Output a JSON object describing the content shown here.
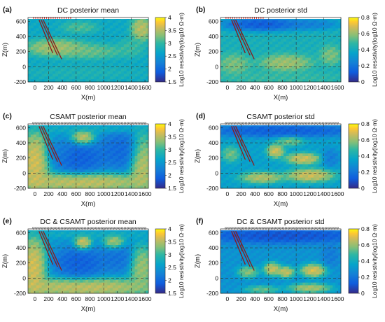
{
  "chart_data": [
    {
      "type": "heatmap",
      "panel": "(a)",
      "title": "DC posterior mean",
      "xlabel": "X(m)",
      "ylabel": "Z(m)",
      "xlim": [
        -100,
        1650
      ],
      "ylim": [
        -200,
        650
      ],
      "xticks": [
        "0",
        "200",
        "400",
        "600",
        "800",
        "1000",
        "1200",
        "1400",
        "1600"
      ],
      "yticks": [
        "600",
        "400",
        "200",
        "0",
        "-200"
      ],
      "colorbar": {
        "label": "Log10 resistivity(log10 Ω·m)",
        "range": [
          1.5,
          4
        ],
        "ticks": [
          "4",
          "3.5",
          "3",
          "2.5",
          "2",
          "1.5"
        ],
        "colormap": "parula"
      },
      "blobs": [
        {
          "x": 300,
          "z": 250,
          "rx": 350,
          "rz": 90,
          "v": 3.6
        },
        {
          "x": 1550,
          "z": 500,
          "rx": 120,
          "rz": 130,
          "v": 3.7
        },
        {
          "x": 650,
          "z": 520,
          "rx": 200,
          "rz": 60,
          "v": 3.2
        },
        {
          "x": 800,
          "z": 200,
          "rx": 400,
          "rz": 80,
          "v": 3.3
        },
        {
          "x": 1400,
          "z": 250,
          "rx": 150,
          "rz": 100,
          "v": 3.1
        },
        {
          "x": 700,
          "z": -80,
          "rx": 700,
          "rz": 80,
          "v": 2.9
        }
      ],
      "base": 2.7
    },
    {
      "type": "heatmap",
      "panel": "(b)",
      "title": "DC posterior std",
      "xlabel": "X(m)",
      "ylabel": "Z(m)",
      "xlim": [
        -100,
        1650
      ],
      "ylim": [
        -200,
        650
      ],
      "xticks": [
        "0",
        "200",
        "400",
        "600",
        "800",
        "1000",
        "1200",
        "1400",
        "1600"
      ],
      "yticks": [
        "600",
        "400",
        "200",
        "0",
        "-200"
      ],
      "colorbar": {
        "label": "Log10 resistivity(log10 Ω·m)",
        "range": [
          0,
          0.8
        ],
        "ticks": [
          "0.8",
          "0.6",
          "0.4",
          "0.2",
          "0"
        ],
        "colormap": "parula"
      },
      "blobs": [
        {
          "x": 500,
          "z": 560,
          "rx": 450,
          "rz": 70,
          "v": 0.05
        },
        {
          "x": 1200,
          "z": 560,
          "rx": 350,
          "rz": 60,
          "v": 0.2
        },
        {
          "x": 850,
          "z": 50,
          "rx": 300,
          "rz": 90,
          "v": 0.65
        },
        {
          "x": 100,
          "z": 30,
          "rx": 180,
          "rz": 110,
          "v": 0.6
        },
        {
          "x": 1500,
          "z": 150,
          "rx": 120,
          "rz": 100,
          "v": 0.6
        },
        {
          "x": 700,
          "z": -150,
          "rx": 800,
          "rz": 70,
          "v": 0.5
        }
      ],
      "base": 0.42
    },
    {
      "type": "heatmap",
      "panel": "(c)",
      "title": "CSAMT posterior mean",
      "xlabel": "X(m)",
      "ylabel": "Z(m)",
      "xlim": [
        -100,
        1650
      ],
      "ylim": [
        -200,
        650
      ],
      "xticks": [
        "0",
        "200",
        "400",
        "600",
        "800",
        "1000",
        "1200",
        "1400",
        "1600"
      ],
      "yticks": [
        "600",
        "400",
        "200",
        "0",
        "-200"
      ],
      "colorbar": {
        "label": "Log10 resistivity(log10 Ω·m)",
        "range": [
          1.5,
          4
        ],
        "ticks": [
          "4",
          "3.5",
          "3",
          "2.5",
          "2",
          "1.5"
        ],
        "colormap": "parula"
      },
      "blobs": [
        {
          "x": 0,
          "z": 150,
          "rx": 170,
          "rz": 330,
          "v": 3.9
        },
        {
          "x": 700,
          "z": -120,
          "rx": 900,
          "rz": 100,
          "v": 3.8
        },
        {
          "x": 1550,
          "z": 150,
          "rx": 140,
          "rz": 300,
          "v": 3.8
        },
        {
          "x": 700,
          "z": 470,
          "rx": 130,
          "rz": 80,
          "v": 3.8
        },
        {
          "x": 800,
          "z": 580,
          "rx": 900,
          "rz": 40,
          "v": 2.8
        },
        {
          "x": 650,
          "z": 200,
          "rx": 300,
          "rz": 170,
          "v": 1.8
        },
        {
          "x": 1250,
          "z": 300,
          "rx": 250,
          "rz": 200,
          "v": 1.9
        },
        {
          "x": 350,
          "z": 280,
          "rx": 150,
          "rz": 120,
          "v": 2.2
        }
      ],
      "base": 2.5
    },
    {
      "type": "heatmap",
      "panel": "(d)",
      "title": "CSAMT posterior std",
      "xlabel": "X(m)",
      "ylabel": "Z(m)",
      "xlim": [
        -100,
        1650
      ],
      "ylim": [
        -200,
        650
      ],
      "xticks": [
        "0",
        "200",
        "400",
        "600",
        "800",
        "1000",
        "1200",
        "1400",
        "1600"
      ],
      "yticks": [
        "600",
        "400",
        "200",
        "0",
        "-200"
      ],
      "colorbar": {
        "label": "Log10 resistivity(log10 Ω·m)",
        "range": [
          0,
          0.8
        ],
        "ticks": [
          "0.8",
          "0.6",
          "0.4",
          "0.2",
          "0"
        ],
        "colormap": "parula"
      },
      "blobs": [
        {
          "x": 800,
          "z": 560,
          "rx": 950,
          "rz": 70,
          "v": 0.08
        },
        {
          "x": 700,
          "z": 290,
          "rx": 100,
          "rz": 70,
          "v": 0.75
        },
        {
          "x": 1100,
          "z": 190,
          "rx": 200,
          "rz": 60,
          "v": 0.75
        },
        {
          "x": 1200,
          "z": -30,
          "rx": 280,
          "rz": 70,
          "v": 0.75
        },
        {
          "x": 500,
          "z": -60,
          "rx": 250,
          "rz": 60,
          "v": 0.7
        },
        {
          "x": 50,
          "z": 250,
          "rx": 100,
          "rz": 80,
          "v": 0.6
        },
        {
          "x": 900,
          "z": 420,
          "rx": 160,
          "rz": 50,
          "v": 0.6
        },
        {
          "x": 1500,
          "z": 200,
          "rx": 100,
          "rz": 100,
          "v": 0.2
        }
      ],
      "base": 0.35
    },
    {
      "type": "heatmap",
      "panel": "(e)",
      "title": "DC & CSAMT posterior mean",
      "xlabel": "X(m)",
      "ylabel": "Z(m)",
      "xlim": [
        -100,
        1650
      ],
      "ylim": [
        -200,
        650
      ],
      "xticks": [
        "0",
        "200",
        "400",
        "600",
        "800",
        "1000",
        "1200",
        "1400",
        "1600"
      ],
      "yticks": [
        "600",
        "400",
        "200",
        "0",
        "-200"
      ],
      "colorbar": {
        "label": "Log10 resistivity(log10 Ω·m)",
        "range": [
          1.5,
          4
        ],
        "ticks": [
          "4",
          "3.5",
          "3",
          "2.5",
          "2",
          "1.5"
        ],
        "colormap": "parula"
      },
      "blobs": [
        {
          "x": -20,
          "z": 150,
          "rx": 150,
          "rz": 330,
          "v": 3.9
        },
        {
          "x": 700,
          "z": -120,
          "rx": 900,
          "rz": 100,
          "v": 3.8
        },
        {
          "x": 1550,
          "z": 150,
          "rx": 140,
          "rz": 220,
          "v": 3.6
        },
        {
          "x": 700,
          "z": 470,
          "rx": 100,
          "rz": 80,
          "v": 3.9
        },
        {
          "x": 1150,
          "z": 480,
          "rx": 120,
          "rz": 80,
          "v": 3.7
        },
        {
          "x": 650,
          "z": 200,
          "rx": 300,
          "rz": 170,
          "v": 1.8
        },
        {
          "x": 1200,
          "z": 260,
          "rx": 200,
          "rz": 150,
          "v": 2.0
        },
        {
          "x": 800,
          "z": 580,
          "rx": 900,
          "rz": 40,
          "v": 2.8
        }
      ],
      "base": 2.5
    },
    {
      "type": "heatmap",
      "panel": "(f)",
      "title": "DC & CSAMT posterior std",
      "xlabel": "X(m)",
      "ylabel": "Z(m)",
      "xlim": [
        -100,
        1650
      ],
      "ylim": [
        -200,
        650
      ],
      "xticks": [
        "0",
        "200",
        "400",
        "600",
        "800",
        "1000",
        "1200",
        "1400",
        "1600"
      ],
      "yticks": [
        "600",
        "400",
        "200",
        "0",
        "-200"
      ],
      "colorbar": {
        "label": "Log10 resistivity(log10 Ω·m)",
        "range": [
          0,
          0.8
        ],
        "ticks": [
          "0.8",
          "0.6",
          "0.4",
          "0.2",
          "0"
        ],
        "colormap": "parula"
      },
      "blobs": [
        {
          "x": 800,
          "z": 560,
          "rx": 950,
          "rz": 80,
          "v": 0.05
        },
        {
          "x": 650,
          "z": 120,
          "rx": 100,
          "rz": 70,
          "v": 0.75
        },
        {
          "x": 850,
          "z": 80,
          "rx": 100,
          "rz": 60,
          "v": 0.75
        },
        {
          "x": 1250,
          "z": 100,
          "rx": 150,
          "rz": 70,
          "v": 0.78
        },
        {
          "x": 300,
          "z": 80,
          "rx": 120,
          "rz": 60,
          "v": 0.65
        },
        {
          "x": 1200,
          "z": -130,
          "rx": 250,
          "rz": 50,
          "v": 0.7
        },
        {
          "x": 500,
          "z": -150,
          "rx": 200,
          "rz": 40,
          "v": 0.6
        },
        {
          "x": 1500,
          "z": 300,
          "rx": 100,
          "rz": 120,
          "v": 0.2
        }
      ],
      "base": 0.3
    }
  ]
}
